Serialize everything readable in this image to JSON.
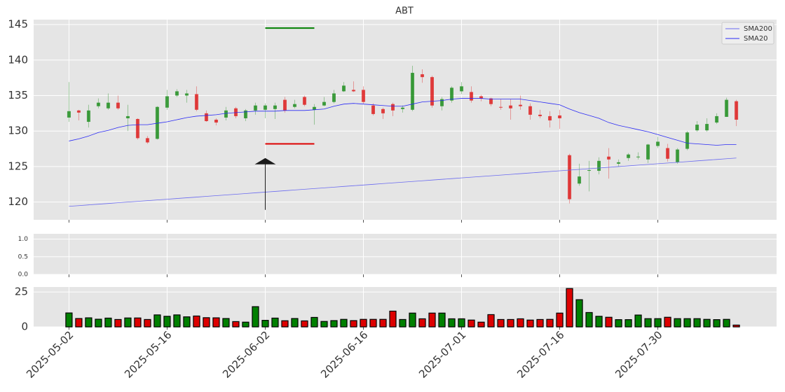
{
  "chart_data": [
    {
      "type": "candlestick",
      "title": "ABT",
      "xlim": [
        -3.6,
        72.1
      ],
      "ylim": [
        117.5,
        145.7
      ],
      "yticks": [
        120,
        125,
        130,
        135,
        140,
        145
      ],
      "grid": true,
      "legend": "upper right",
      "up_color": "#008000",
      "down_color": "#dd0000",
      "open": [
        131.9,
        132.9,
        131.3,
        133.5,
        133.2,
        134.0,
        131.8,
        131.7,
        129.0,
        128.9,
        133.3,
        135.0,
        135.0,
        135.2,
        132.5,
        131.6,
        131.9,
        133.2,
        131.8,
        132.9,
        133.0,
        133.1,
        134.4,
        133.4,
        134.8,
        133.0,
        133.6,
        134.1,
        135.6,
        135.8,
        135.8,
        133.6,
        133.1,
        133.8,
        133.1,
        133.0,
        138.0,
        137.6,
        133.5,
        134.3,
        135.6,
        135.5,
        134.9,
        134.6,
        133.4,
        133.6,
        133.7,
        133.5,
        132.3,
        132.1,
        132.2,
        126.6,
        122.6,
        124.4,
        124.4,
        126.4,
        125.4,
        126.2,
        126.3,
        126.0,
        127.9,
        127.6,
        125.6,
        127.5,
        130.1,
        130.1,
        131.2,
        132.0,
        134.2
      ],
      "high": [
        136.9,
        133.0,
        133.7,
        134.6,
        135.3,
        135.0,
        133.7,
        131.8,
        129.3,
        133.5,
        135.8,
        135.9,
        135.8,
        136.3,
        132.9,
        131.8,
        133.4,
        133.4,
        133.1,
        134.0,
        133.9,
        134.0,
        134.8,
        134.4,
        135.0,
        133.8,
        134.8,
        135.8,
        136.9,
        137.0,
        136.3,
        133.9,
        133.3,
        134.0,
        133.6,
        139.2,
        138.7,
        137.8,
        134.8,
        136.3,
        136.9,
        136.3,
        135.1,
        134.7,
        134.5,
        134.5,
        135.0,
        133.9,
        133.0,
        132.8,
        133.0,
        126.8,
        125.4,
        125.8,
        126.3,
        127.6,
        126.0,
        126.9,
        127.0,
        128.2,
        129.2,
        128.2,
        127.6,
        130.0,
        131.4,
        131.8,
        132.5,
        134.7,
        134.4
      ],
      "low": [
        131.3,
        131.5,
        130.5,
        133.2,
        133.0,
        133.0,
        130.0,
        128.8,
        128.2,
        128.8,
        133.0,
        134.8,
        134.0,
        132.8,
        131.3,
        130.8,
        131.5,
        131.8,
        131.4,
        132.3,
        131.8,
        131.7,
        132.6,
        133.2,
        133.5,
        130.9,
        133.5,
        133.9,
        135.5,
        135.5,
        133.8,
        132.2,
        131.7,
        132.1,
        132.6,
        132.8,
        136.8,
        133.3,
        132.9,
        134.0,
        135.2,
        134.0,
        134.2,
        133.5,
        133.0,
        131.6,
        133.0,
        131.6,
        131.8,
        130.5,
        130.3,
        119.8,
        122.3,
        121.5,
        123.9,
        123.3,
        125.0,
        125.8,
        126.0,
        125.5,
        127.6,
        125.7,
        125.4,
        127.3,
        129.9,
        129.9,
        131.0,
        132.0,
        130.7
      ],
      "close": [
        132.8,
        132.6,
        132.9,
        134.0,
        134.0,
        133.2,
        132.1,
        129.0,
        128.4,
        133.4,
        134.9,
        135.6,
        135.3,
        133.0,
        131.4,
        131.2,
        132.9,
        132.1,
        132.9,
        133.6,
        133.6,
        133.6,
        132.9,
        133.8,
        133.7,
        133.4,
        134.1,
        135.3,
        136.4,
        135.6,
        134.1,
        132.4,
        132.5,
        132.9,
        133.3,
        138.2,
        137.6,
        133.6,
        134.5,
        136.1,
        136.3,
        134.3,
        134.6,
        133.8,
        133.3,
        133.2,
        133.5,
        132.3,
        132.1,
        131.5,
        131.8,
        120.4,
        123.6,
        124.5,
        125.8,
        126.0,
        125.6,
        126.7,
        126.4,
        128.1,
        128.5,
        126.1,
        127.4,
        129.8,
        130.9,
        131.0,
        132.1,
        134.4,
        131.6
      ],
      "series": [
        {
          "name": "SMA200",
          "color": "#6b6bf0",
          "values": [
            119.4,
            119.5,
            119.6,
            119.7,
            119.8,
            119.9,
            120.0,
            120.1,
            120.2,
            120.3,
            120.4,
            120.5,
            120.6,
            120.7,
            120.8,
            120.9,
            121.0,
            121.1,
            121.2,
            121.3,
            121.4,
            121.5,
            121.6,
            121.7,
            121.8,
            121.9,
            122.0,
            122.1,
            122.2,
            122.3,
            122.4,
            122.5,
            122.6,
            122.7,
            122.8,
            122.9,
            123.0,
            123.1,
            123.2,
            123.3,
            123.4,
            123.5,
            123.6,
            123.7,
            123.8,
            123.9,
            124.0,
            124.1,
            124.2,
            124.3,
            124.4,
            124.5,
            124.6,
            124.7,
            124.8,
            124.9,
            125.0,
            125.1,
            125.2,
            125.3,
            125.4,
            125.5,
            125.6,
            125.7,
            125.8,
            125.9,
            126.0,
            126.1,
            126.2
          ]
        },
        {
          "name": "SMA20",
          "color": "#2a2af5",
          "values": [
            128.6,
            128.9,
            129.3,
            129.8,
            130.1,
            130.5,
            130.8,
            130.9,
            130.9,
            131.1,
            131.3,
            131.6,
            131.9,
            132.1,
            132.2,
            132.3,
            132.5,
            132.6,
            132.7,
            132.8,
            132.8,
            132.8,
            132.9,
            132.9,
            132.9,
            133.0,
            133.1,
            133.5,
            133.8,
            133.9,
            133.8,
            133.7,
            133.6,
            133.5,
            133.5,
            133.8,
            134.1,
            134.2,
            134.3,
            134.5,
            134.6,
            134.6,
            134.6,
            134.5,
            134.5,
            134.5,
            134.5,
            134.3,
            134.1,
            133.9,
            133.7,
            133.1,
            132.6,
            132.2,
            131.8,
            131.2,
            130.8,
            130.5,
            130.2,
            129.9,
            129.5,
            129.1,
            128.7,
            128.3,
            128.2,
            128.1,
            128.0,
            128.1,
            128.1
          ]
        }
      ],
      "annotations": [
        {
          "type": "hline",
          "value": 144.5,
          "color": "#008000",
          "start": 20,
          "end": 25
        },
        {
          "type": "hline",
          "value": 128.2,
          "color": "#dd0000",
          "start": 20,
          "end": 25
        },
        {
          "type": "arrow",
          "at": 20,
          "from": 118.9,
          "to": 126.2,
          "color": "#1a1a1a"
        }
      ]
    },
    {
      "type": "line",
      "xlim": [
        -3.6,
        72.1
      ],
      "ylim": [
        0,
        1.15
      ],
      "yticks": [
        {
          "value": 0,
          "label": "0.0"
        },
        {
          "value": 0.5,
          "label": "0.5"
        },
        {
          "value": 1,
          "label": "1.0"
        }
      ],
      "grid": true
    },
    {
      "type": "bar",
      "xlim": [
        -3.6,
        72.1
      ],
      "ylim": [
        0,
        28.6
      ],
      "yticks": [
        0,
        25
      ],
      "grid": true,
      "categories": [
        "2025-05-02",
        null,
        null,
        null,
        null,
        null,
        null,
        null,
        null,
        null,
        "2025-05-16",
        null,
        null,
        null,
        null,
        null,
        null,
        null,
        null,
        null,
        "2025-06-02",
        null,
        null,
        null,
        null,
        null,
        null,
        null,
        null,
        null,
        "2025-06-16",
        null,
        null,
        null,
        null,
        null,
        null,
        null,
        null,
        null,
        "2025-07-01",
        null,
        null,
        null,
        null,
        null,
        null,
        null,
        null,
        null,
        "2025-07-16",
        null,
        null,
        null,
        null,
        null,
        null,
        null,
        null,
        null,
        "2025-07-30",
        null,
        null,
        null,
        null,
        null,
        null,
        null,
        null
      ],
      "values": [
        10,
        6,
        6.5,
        5.5,
        6.3,
        5.3,
        6.4,
        6.4,
        5.3,
        8.6,
        7.6,
        8.6,
        7.2,
        7.8,
        6.6,
        6.5,
        6,
        3.8,
        3.4,
        14.5,
        4.7,
        6.3,
        4.4,
        6,
        4.3,
        6.8,
        3.9,
        4.5,
        5.4,
        4.5,
        5.4,
        5.4,
        5.4,
        11.3,
        5.3,
        9.9,
        5.8,
        9.9,
        9.9,
        5.8,
        5.8,
        4.9,
        3.4,
        8.8,
        5.3,
        5.3,
        5.8,
        4.9,
        5.3,
        5.4,
        9.9,
        27.5,
        19.5,
        10.3,
        7.6,
        6.9,
        5.2,
        5.2,
        8.5,
        5.9,
        5.9,
        6.9,
        5.9,
        5.9,
        5.9,
        5.4,
        5.2,
        5.4,
        1.3
      ]
    }
  ]
}
